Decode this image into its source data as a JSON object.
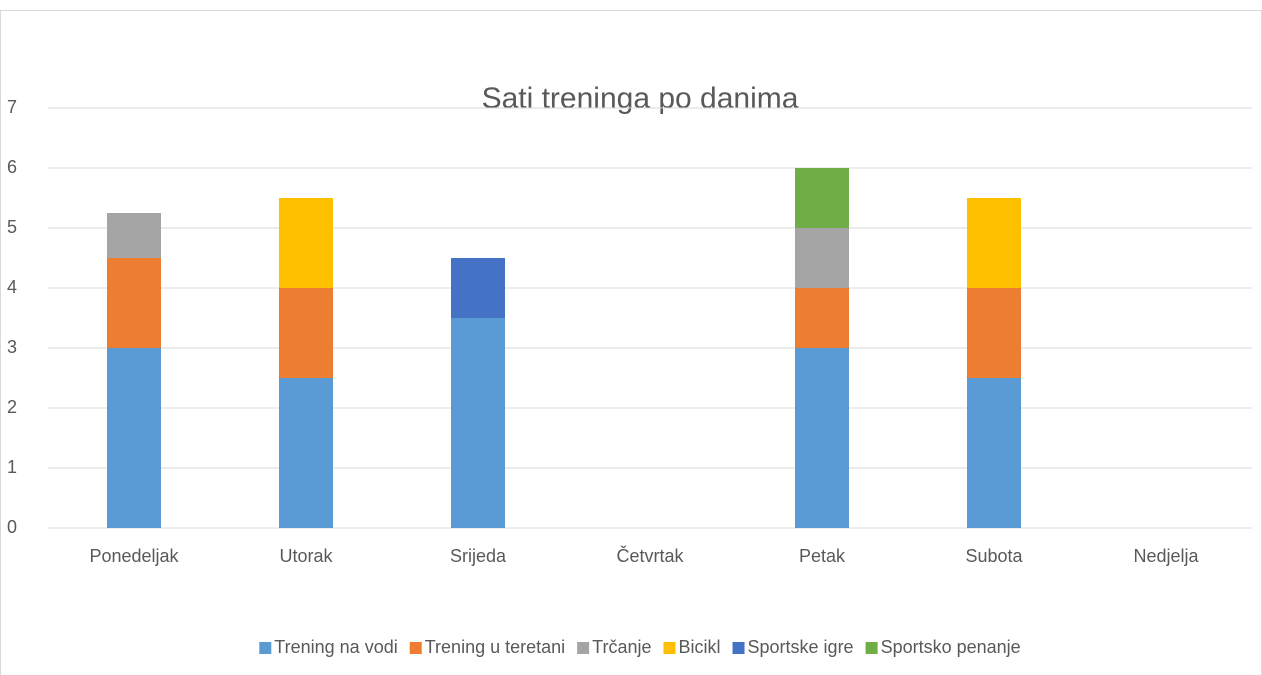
{
  "chart_data": {
    "type": "stacked_bar",
    "title": "Sati treninga po danima",
    "categories": [
      "Ponedeljak",
      "Utorak",
      "Srijeda",
      "Četvrtak",
      "Petak",
      "Subota",
      "Nedjelja"
    ],
    "series": [
      {
        "name": "Trening na vodi",
        "color": "#5b9bd5",
        "values": [
          3,
          2.5,
          3.5,
          null,
          3,
          2.5,
          null
        ]
      },
      {
        "name": "Trening u teretani",
        "color": "#ed7d31",
        "values": [
          1.5,
          1.5,
          null,
          null,
          1,
          1.5,
          null
        ]
      },
      {
        "name": "Trčanje",
        "color": "#a5a5a5",
        "values": [
          0.75,
          null,
          null,
          null,
          1,
          null,
          null
        ]
      },
      {
        "name": "Bicikl",
        "color": "#ffc000",
        "values": [
          null,
          1.5,
          null,
          null,
          null,
          1.5,
          null
        ]
      },
      {
        "name": "Sportske igre",
        "color": "#4472c4",
        "values": [
          null,
          null,
          1,
          null,
          null,
          null,
          null
        ]
      },
      {
        "name": "Sportsko penanje",
        "color": "#70ad47",
        "values": [
          null,
          null,
          null,
          null,
          1,
          null,
          null
        ]
      }
    ],
    "ylim": [
      0,
      7
    ],
    "yticks": [
      0,
      1,
      2,
      3,
      4,
      5,
      6,
      7
    ],
    "grid": true,
    "legend": "bottom"
  }
}
